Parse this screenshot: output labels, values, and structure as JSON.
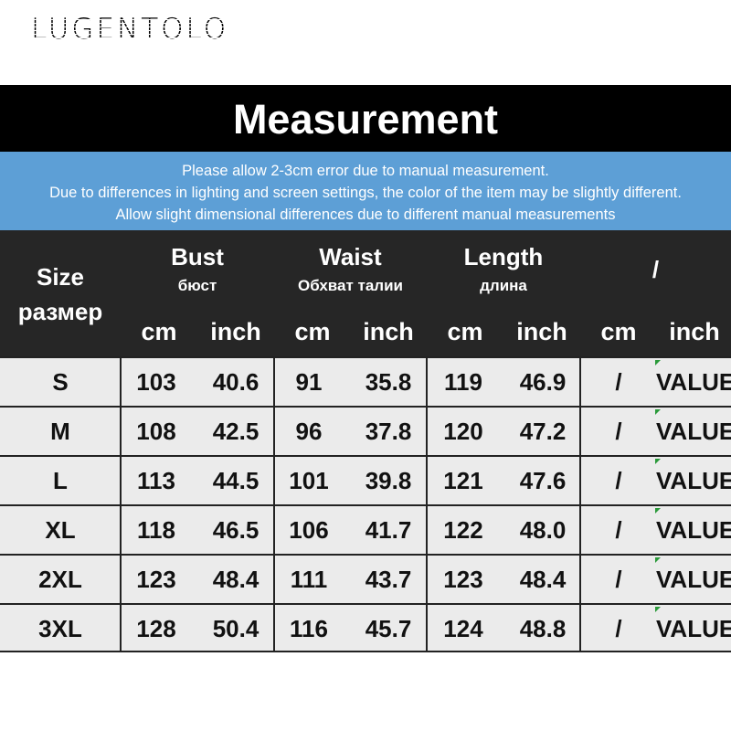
{
  "brand": "LUGENTOLO",
  "title": "Measurement",
  "notes": [
    "Please allow 2-3cm error due to manual measurement.",
    "Due to differences in lighting and screen settings, the color of the item may be slightly different.",
    "Allow slight dimensional differences due to different manual measurements"
  ],
  "header": {
    "size": {
      "en": "Size",
      "ru": "размер"
    },
    "groups": [
      {
        "en": "Bust",
        "ru": "бюст"
      },
      {
        "en": "Waist",
        "ru": "Обхват талии"
      },
      {
        "en": "Length",
        "ru": "длина"
      },
      {
        "en": "/",
        "ru": ""
      }
    ],
    "units": [
      "cm",
      "inch",
      "cm",
      "inch",
      "cm",
      "inch",
      "cm",
      "inch"
    ]
  },
  "rows": [
    [
      "S",
      "103",
      "40.6",
      "91",
      "35.8",
      "119",
      "46.9",
      "/",
      "VALUE"
    ],
    [
      "M",
      "108",
      "42.5",
      "96",
      "37.8",
      "120",
      "47.2",
      "/",
      "VALUE"
    ],
    [
      "L",
      "113",
      "44.5",
      "101",
      "39.8",
      "121",
      "47.6",
      "/",
      "VALUE"
    ],
    [
      "XL",
      "118",
      "46.5",
      "106",
      "41.7",
      "122",
      "48.0",
      "/",
      "VALUE"
    ],
    [
      "2XL",
      "123",
      "48.4",
      "111",
      "43.7",
      "123",
      "48.4",
      "/",
      "VALUE"
    ],
    [
      "3XL",
      "128",
      "50.4",
      "116",
      "45.7",
      "124",
      "48.8",
      "/",
      "VALUE"
    ]
  ],
  "colors": {
    "header_bg": "#262626",
    "notes_bg": "#5d9fd6",
    "row_bg": "#ebebeb"
  }
}
